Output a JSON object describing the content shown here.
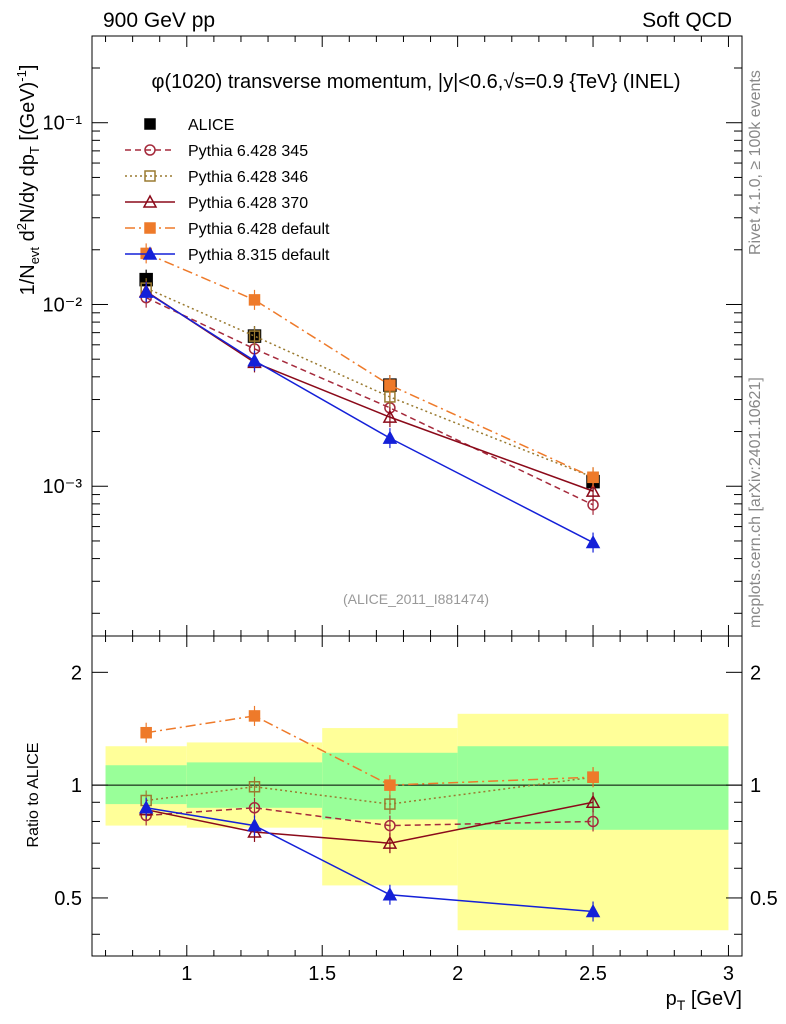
{
  "header": {
    "left": "900 GeV pp",
    "right": "Soft QCD"
  },
  "side_labels": {
    "rivet": "Rivet 4.1.0, ≥ 100k events",
    "mcplots": "mcplots.cern.ch [arXiv:2401.10621]"
  },
  "chart_data": {
    "type": "line",
    "title": "φ(1020) transverse momentum, |y|<0.6,√s=0.9 {TeV} (INEL)",
    "analysis_tag": "(ALICE_2011_I881474)",
    "xlabel": "p_T [GeV]",
    "ylabel": "1/N_evt d²N/dy dp_T [(GeV)⁻¹]",
    "ratio_ylabel": "Ratio to ALICE",
    "xlim": [
      0.65,
      3.05
    ],
    "ylim": [
      0.00015,
      0.3
    ],
    "ratio_ylim": [
      0.35,
      2.5
    ],
    "x_ticks": [
      "1",
      "1.5",
      "2",
      "2.5",
      "3"
    ],
    "y_ticks": [
      "10⁻¹",
      "10⁻²",
      "10⁻³"
    ],
    "ratio_ticks": [
      "2",
      "1",
      "0.5"
    ],
    "x": [
      0.85,
      1.25,
      1.75,
      2.5
    ],
    "bins": [
      [
        0.7,
        1.0
      ],
      [
        1.0,
        1.5
      ],
      [
        1.5,
        2.0
      ],
      [
        2.0,
        3.0
      ]
    ],
    "band_green": [
      [
        0.89,
        1.13
      ],
      [
        0.87,
        1.15
      ],
      [
        0.81,
        1.22
      ],
      [
        0.76,
        1.27
      ]
    ],
    "band_yellow": [
      [
        0.78,
        1.27
      ],
      [
        0.77,
        1.3
      ],
      [
        0.54,
        1.42
      ],
      [
        0.41,
        1.55
      ]
    ],
    "series": [
      {
        "name": "ALICE",
        "color": "#000000",
        "marker": "square-filled",
        "line": "none",
        "values": [
          0.0137,
          0.0067,
          0.0036,
          0.00106
        ],
        "ratio": [
          1,
          1,
          1,
          1
        ]
      },
      {
        "name": "Pythia 6.428 345",
        "color": "#a52a3c",
        "marker": "circle-open",
        "line": "dashed",
        "values": [
          0.0109,
          0.0057,
          0.0027,
          0.00079
        ],
        "ratio": [
          0.83,
          0.87,
          0.78,
          0.8
        ]
      },
      {
        "name": "Pythia 6.428 346",
        "color": "#9a7a30",
        "marker": "square-open",
        "line": "dotted",
        "values": [
          0.0123,
          0.0067,
          0.0031,
          0.00112
        ],
        "ratio": [
          0.91,
          0.99,
          0.89,
          1.05
        ]
      },
      {
        "name": "Pythia 6.428 370",
        "color": "#8b0a1a",
        "marker": "triangle-open",
        "line": "solid",
        "values": [
          0.0118,
          0.0048,
          0.0024,
          0.00094
        ],
        "ratio": [
          0.86,
          0.75,
          0.7,
          0.9
        ]
      },
      {
        "name": "Pythia 6.428 default",
        "color": "#ee7a2a",
        "marker": "square-filled",
        "line": "dashdot",
        "values": [
          0.0191,
          0.0106,
          0.0036,
          0.00112
        ],
        "ratio": [
          1.38,
          1.53,
          1.0,
          1.05
        ]
      },
      {
        "name": "Pythia 8.315 default",
        "color": "#1420d8",
        "marker": "triangle-filled",
        "line": "solid",
        "values": [
          0.0117,
          0.0049,
          0.00184,
          0.00049
        ],
        "ratio": [
          0.87,
          0.78,
          0.51,
          0.46
        ]
      }
    ]
  }
}
